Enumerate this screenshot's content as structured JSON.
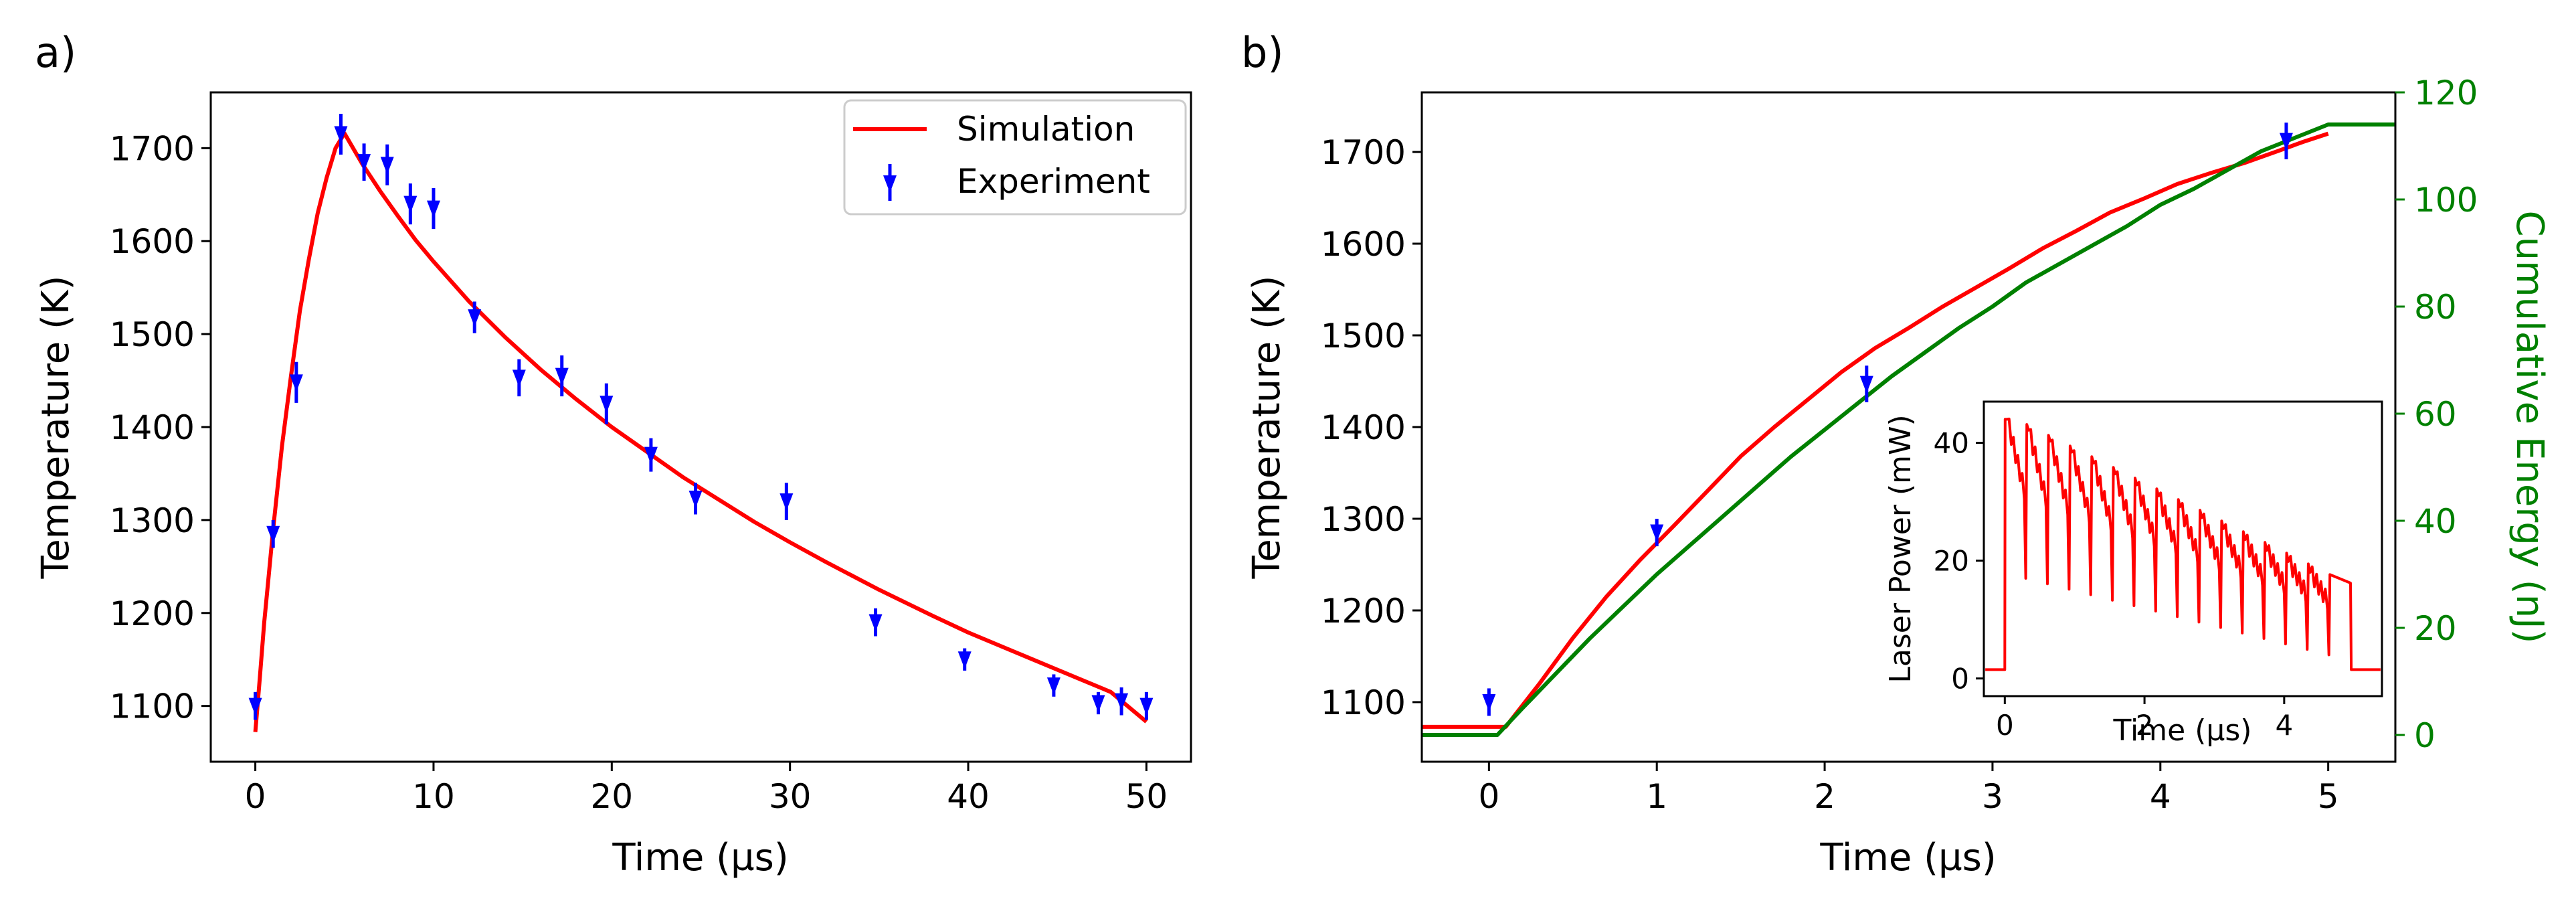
{
  "chart_data": [
    {
      "panel": "a)",
      "type": "line+errorbar",
      "xlabel": "Time (µs)",
      "ylabel": "Temperature (K)",
      "xlim": [
        -2.5,
        52.5
      ],
      "ylim": [
        1040,
        1760
      ],
      "xticks": [
        0,
        10,
        20,
        30,
        40,
        50
      ],
      "yticks": [
        1100,
        1200,
        1300,
        1400,
        1500,
        1600,
        1700
      ],
      "legend": {
        "position": "top-right",
        "entries": [
          "Simulation",
          "Experiment"
        ]
      },
      "series": [
        {
          "name": "Simulation",
          "kind": "line",
          "color": "#ff0000",
          "x": [
            0,
            0.25,
            0.5,
            0.75,
            1,
            1.5,
            2,
            2.5,
            3,
            3.5,
            4,
            4.5,
            5,
            6,
            7,
            8,
            9,
            10,
            12,
            14,
            16,
            18,
            20,
            22,
            24,
            26,
            28,
            30,
            32,
            35,
            38,
            40,
            43,
            45,
            48,
            50
          ],
          "y": [
            1072,
            1130,
            1190,
            1240,
            1290,
            1380,
            1455,
            1525,
            1580,
            1630,
            1668,
            1700,
            1716,
            1683,
            1654,
            1627,
            1601,
            1578,
            1535,
            1497,
            1462,
            1430,
            1400,
            1373,
            1346,
            1322,
            1298,
            1276,
            1255,
            1225,
            1197,
            1179,
            1155,
            1139,
            1115,
            1083
          ]
        },
        {
          "name": "Experiment",
          "kind": "errorbar",
          "color": "#0000ff",
          "x": [
            0,
            1,
            2.3,
            4.8,
            6.1,
            7.4,
            8.7,
            10,
            12.3,
            14.8,
            17.2,
            19.7,
            22.2,
            24.7,
            29.8,
            34.8,
            39.8,
            44.8,
            47.3,
            48.6,
            50
          ],
          "y": [
            1100,
            1285,
            1448,
            1715,
            1685,
            1682,
            1640,
            1635,
            1518,
            1453,
            1455,
            1425,
            1370,
            1323,
            1320,
            1190,
            1150,
            1122,
            1103,
            1105,
            1100
          ],
          "yerr": [
            15,
            15,
            22,
            22,
            20,
            22,
            22,
            22,
            17,
            20,
            22,
            22,
            18,
            17,
            20,
            15,
            12,
            12,
            12,
            15,
            15
          ]
        }
      ]
    },
    {
      "panel": "b)",
      "type": "line+errorbar",
      "xlabel": "Time (µs)",
      "ylabel": "Temperature (K)",
      "y2label": "Cumulative Energy (nJ)",
      "xlim": [
        -0.4,
        5.4
      ],
      "ylim": [
        1035,
        1765
      ],
      "y2lim": [
        -5,
        120
      ],
      "xticks": [
        0,
        1,
        2,
        3,
        4,
        5
      ],
      "yticks": [
        1100,
        1200,
        1300,
        1400,
        1500,
        1600,
        1700
      ],
      "y2ticks": [
        0,
        20,
        40,
        60,
        80,
        100,
        120
      ],
      "series": [
        {
          "name": "Simulation temperature",
          "kind": "line",
          "axis": "left",
          "color": "#ff0000",
          "x": [
            -0.4,
            0.1,
            0.3,
            0.5,
            0.7,
            0.9,
            1.1,
            1.3,
            1.5,
            1.7,
            1.9,
            2.1,
            2.3,
            2.5,
            2.7,
            2.9,
            3.1,
            3.3,
            3.5,
            3.7,
            3.9,
            4.1,
            4.3,
            4.5,
            4.7,
            4.85,
            5.0
          ],
          "y": [
            1073,
            1073,
            1120,
            1170,
            1215,
            1255,
            1292,
            1330,
            1368,
            1400,
            1430,
            1460,
            1486,
            1508,
            1531,
            1552,
            1573,
            1595,
            1614,
            1634,
            1649,
            1665,
            1677,
            1688,
            1701,
            1711,
            1720
          ]
        },
        {
          "name": "Cumulative energy",
          "kind": "line",
          "axis": "right",
          "color": "#008000",
          "x": [
            -0.4,
            0.05,
            0.2,
            0.4,
            0.6,
            0.8,
            1.0,
            1.2,
            1.4,
            1.6,
            1.8,
            2.0,
            2.2,
            2.4,
            2.6,
            2.8,
            3.0,
            3.2,
            3.4,
            3.6,
            3.8,
            4.0,
            4.2,
            4.4,
            4.6,
            4.8,
            5.0,
            5.05,
            5.4
          ],
          "y": [
            0,
            0,
            5,
            11.5,
            18,
            24,
            30,
            35.5,
            41,
            46.5,
            52,
            57,
            62,
            67,
            71.5,
            76,
            80,
            84.5,
            88,
            91.5,
            95,
            99,
            102,
            105.5,
            109,
            111.5,
            114,
            114,
            114
          ]
        },
        {
          "name": "Experiment",
          "kind": "errorbar",
          "axis": "left",
          "color": "#0000ff",
          "x": [
            0,
            1,
            2.25,
            4.75
          ],
          "y": [
            1100,
            1285,
            1447,
            1712
          ],
          "yerr": [
            15,
            15,
            20,
            20
          ]
        }
      ],
      "inset": {
        "type": "line",
        "xlabel": "Time (µs)",
        "ylabel": "Laser Power (mW)",
        "xlim": [
          -0.3,
          5.4
        ],
        "ylim": [
          -3,
          47
        ],
        "xticks": [
          0,
          2,
          4
        ],
        "yticks": [
          0,
          20,
          40
        ],
        "color": "#ff0000",
        "signal": {
          "off_level": 1.5,
          "on_start": 0.0,
          "on_end": 4.95,
          "period": 0.31,
          "peak_start": 44,
          "peak_end": 18,
          "dip_start": 17,
          "dip_end": 4,
          "start_hold": 44
        }
      }
    }
  ],
  "panel_labels": {
    "a": "a)",
    "b": "b)"
  }
}
